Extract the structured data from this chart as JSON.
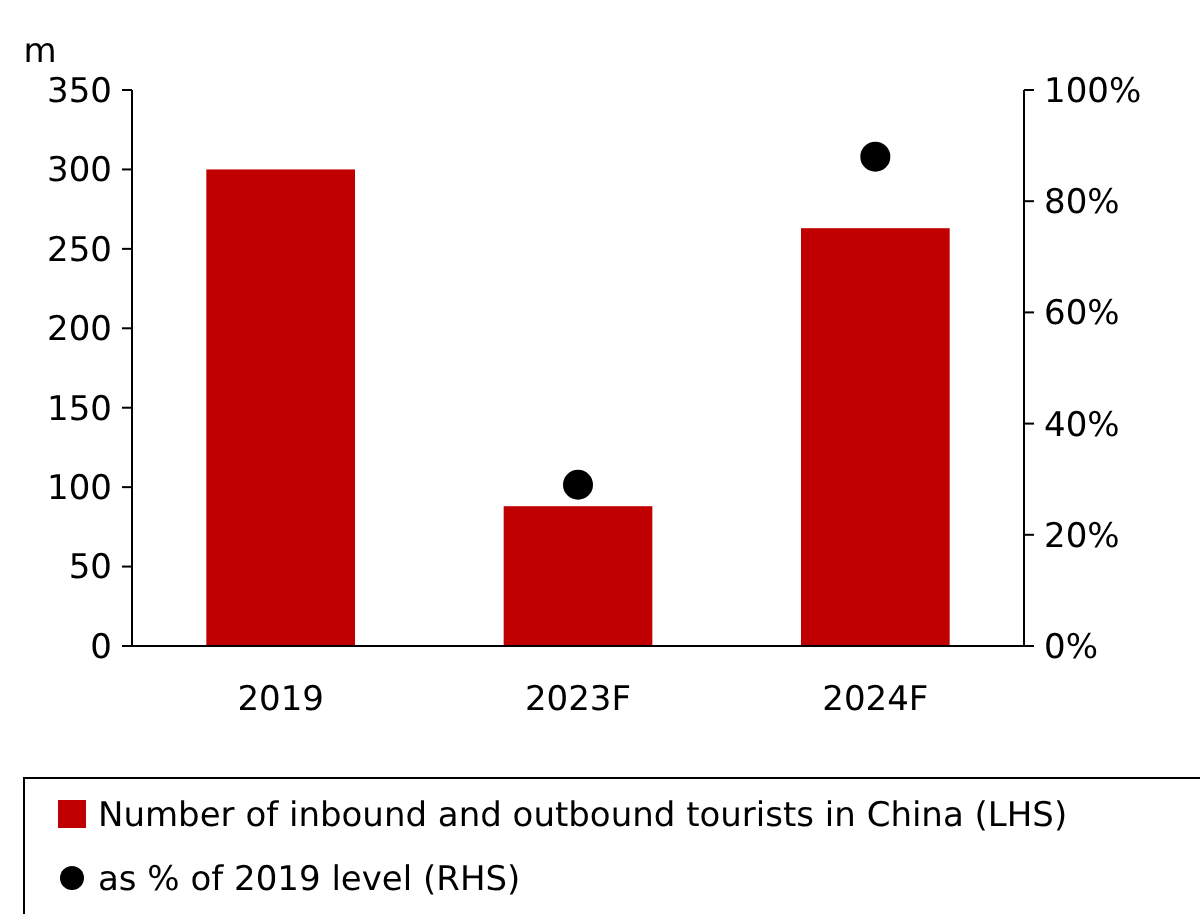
{
  "chart_data": {
    "type": "bar",
    "ylabel": "m",
    "categories": [
      "2019",
      "2023F",
      "2024F"
    ],
    "series": [
      {
        "name": "Number of inbound and outbound tourists in China (LHS)",
        "color": "#c00000",
        "values": [
          300,
          88,
          263
        ]
      },
      {
        "name": "as % of 2019 level (RHS)",
        "type": "scatter",
        "axis": "y2",
        "color": "#000000",
        "values": [
          null,
          29,
          88
        ],
        "marker": "circle"
      }
    ],
    "ylim": [
      0,
      350
    ],
    "yticks": [
      0,
      50,
      100,
      150,
      200,
      250,
      300,
      350
    ],
    "y2lim": [
      0,
      100
    ],
    "y2ticks": [
      {
        "value": 0,
        "label": "0%"
      },
      {
        "value": 20,
        "label": "20%"
      },
      {
        "value": 40,
        "label": "40%"
      },
      {
        "value": 60,
        "label": "60%"
      },
      {
        "value": 80,
        "label": "80%"
      },
      {
        "value": 100,
        "label": "100%"
      }
    ],
    "grid": false,
    "legend": "bottom"
  }
}
